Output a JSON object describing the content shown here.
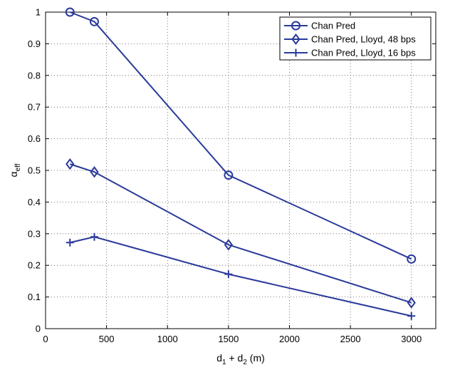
{
  "chart_data": {
    "type": "line",
    "xlabel": {
      "base": "d",
      "sub1": "1",
      "mid": " + d",
      "sub2": "2",
      "unit": " (m)"
    },
    "ylabel": {
      "base": "α",
      "sub": "eff"
    },
    "xlim": [
      0,
      3200
    ],
    "ylim": [
      0,
      1
    ],
    "xticks": [
      0,
      500,
      1000,
      1500,
      2000,
      2500,
      3000
    ],
    "yticks": [
      0,
      0.1,
      0.2,
      0.3,
      0.4,
      0.5,
      0.6,
      0.7,
      0.8,
      0.9,
      1
    ],
    "xtick_labels": [
      "0",
      "500",
      "1000",
      "1500",
      "2000",
      "2500",
      "3000"
    ],
    "ytick_labels": [
      "0",
      "0.1",
      "0.2",
      "0.3",
      "0.4",
      "0.5",
      "0.6",
      "0.7",
      "0.8",
      "0.9",
      "1"
    ],
    "grid": true,
    "legend_position": "top-right",
    "line_color": "#2a3a9a",
    "series": [
      {
        "name": "Chan Pred",
        "marker": "circle",
        "x": [
          200,
          400,
          1500,
          3000
        ],
        "y": [
          1.0,
          0.97,
          0.485,
          0.22
        ]
      },
      {
        "name": "Chan Pred, Lloyd, 48 bps",
        "marker": "diamond",
        "x": [
          200,
          400,
          1500,
          3000
        ],
        "y": [
          0.52,
          0.495,
          0.265,
          0.082
        ]
      },
      {
        "name": "Chan Pred, Lloyd, 16 bps",
        "marker": "plus",
        "x": [
          200,
          400,
          1500,
          3000
        ],
        "y": [
          0.272,
          0.29,
          0.172,
          0.04
        ]
      }
    ]
  }
}
